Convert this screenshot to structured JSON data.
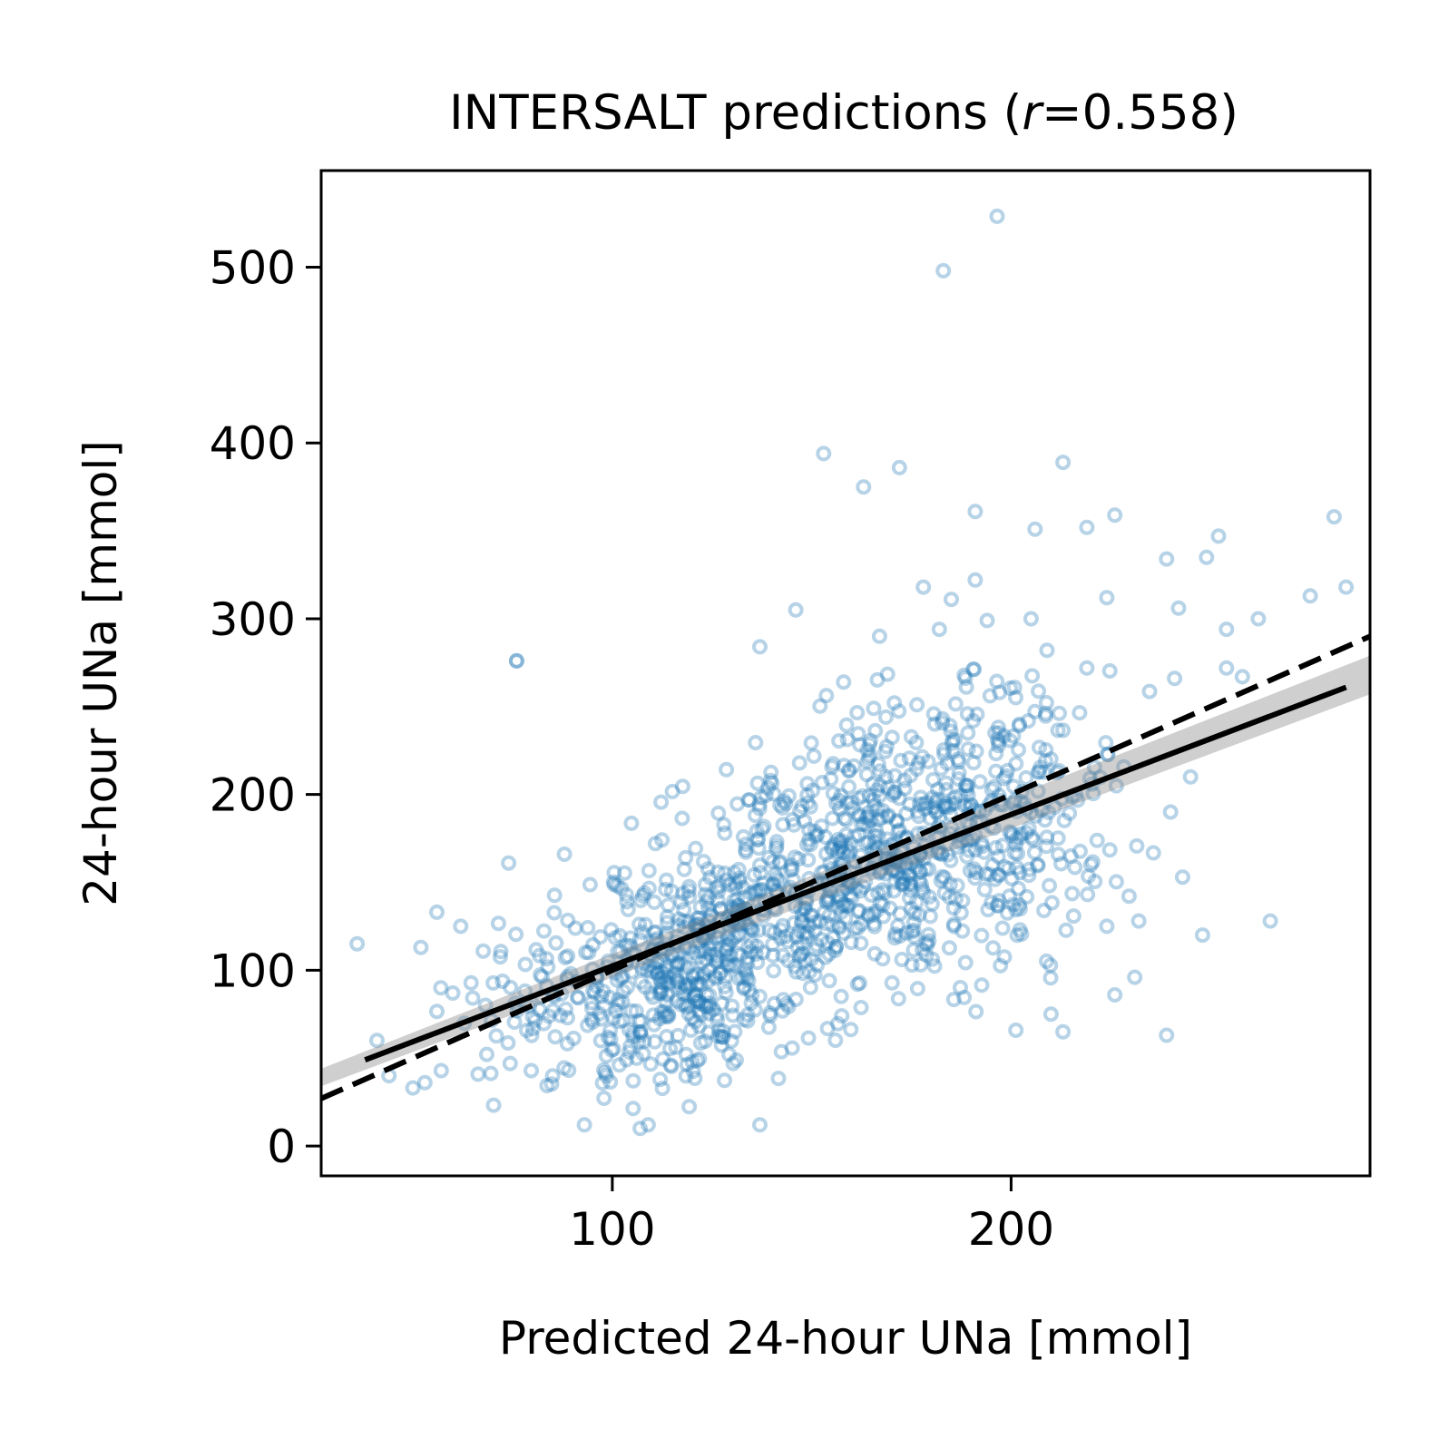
{
  "chart_data": {
    "type": "scatter",
    "title_main": "INTERSALT predictions (",
    "title_var": "r",
    "title_rest": "=0.558)",
    "xlabel": "Predicted 24-hour UNa [mmol]",
    "ylabel": "24-hour UNa [mmol]",
    "xlim": [
      27,
      290
    ],
    "ylim": [
      -17,
      555
    ],
    "xticks": [
      100,
      200
    ],
    "yticks": [
      0,
      100,
      200,
      300,
      400,
      500
    ],
    "grid": false,
    "legend": "none",
    "point_color": "#1f77b4",
    "outliers": [
      [
        196.5,
        529
      ],
      [
        183,
        498
      ],
      [
        153,
        394
      ],
      [
        172,
        386
      ],
      [
        163,
        375
      ],
      [
        213,
        389
      ],
      [
        191,
        361
      ],
      [
        206,
        351
      ],
      [
        219,
        352
      ],
      [
        226,
        359
      ],
      [
        252,
        347
      ],
      [
        281,
        358
      ],
      [
        239,
        334
      ],
      [
        249,
        335
      ],
      [
        284,
        318
      ],
      [
        178,
        318
      ],
      [
        191,
        322
      ],
      [
        224,
        312
      ],
      [
        185,
        311
      ],
      [
        219,
        272
      ],
      [
        158,
        264
      ],
      [
        146,
        305
      ],
      [
        194,
        299
      ],
      [
        205,
        300
      ],
      [
        182,
        294
      ],
      [
        254,
        294
      ],
      [
        262,
        300
      ],
      [
        275,
        313
      ],
      [
        242,
        306
      ],
      [
        167,
        290
      ],
      [
        137,
        284
      ],
      [
        209,
        282
      ],
      [
        254,
        272
      ],
      [
        258,
        267
      ],
      [
        241,
        266
      ],
      [
        76,
        276
      ],
      [
        265,
        128
      ],
      [
        248,
        120
      ],
      [
        224,
        125
      ],
      [
        239,
        63
      ],
      [
        231,
        96
      ],
      [
        226,
        86
      ],
      [
        213,
        65
      ],
      [
        210,
        75
      ],
      [
        137,
        12
      ],
      [
        107,
        10
      ],
      [
        109,
        12
      ],
      [
        93,
        12
      ],
      [
        36,
        115
      ],
      [
        41,
        60
      ],
      [
        44,
        40
      ],
      [
        50,
        33
      ],
      [
        53,
        36
      ],
      [
        57,
        90
      ],
      [
        52,
        113
      ],
      [
        56,
        133
      ],
      [
        60,
        87
      ],
      [
        62,
        125
      ],
      [
        74,
        161
      ],
      [
        76,
        276
      ],
      [
        88,
        166
      ],
      [
        232,
        128
      ],
      [
        243,
        153
      ],
      [
        240,
        190
      ],
      [
        245,
        210
      ],
      [
        215,
        165
      ],
      [
        220,
        160
      ]
    ],
    "cluster": [
      {
        "cx": 118,
        "cy": 100,
        "sx": 14,
        "sy": 30,
        "n": 360
      },
      {
        "cx": 150,
        "cy": 150,
        "sx": 20,
        "sy": 38,
        "n": 380
      },
      {
        "cx": 178,
        "cy": 175,
        "sx": 18,
        "sy": 40,
        "n": 300
      },
      {
        "cx": 200,
        "cy": 185,
        "sx": 14,
        "sy": 38,
        "n": 150
      },
      {
        "cx": 85,
        "cy": 85,
        "sx": 12,
        "sy": 30,
        "n": 90
      }
    ],
    "regression_line": {
      "x": [
        38,
        284
      ],
      "y": [
        49,
        261
      ],
      "style": "solid"
    },
    "confidence_band": {
      "x": [
        27,
        290
      ],
      "upper": [
        44,
        279
      ],
      "lower": [
        34,
        257
      ]
    },
    "identity_line": {
      "x": [
        27,
        290
      ],
      "y": [
        27,
        290
      ],
      "style": "dashed"
    }
  }
}
